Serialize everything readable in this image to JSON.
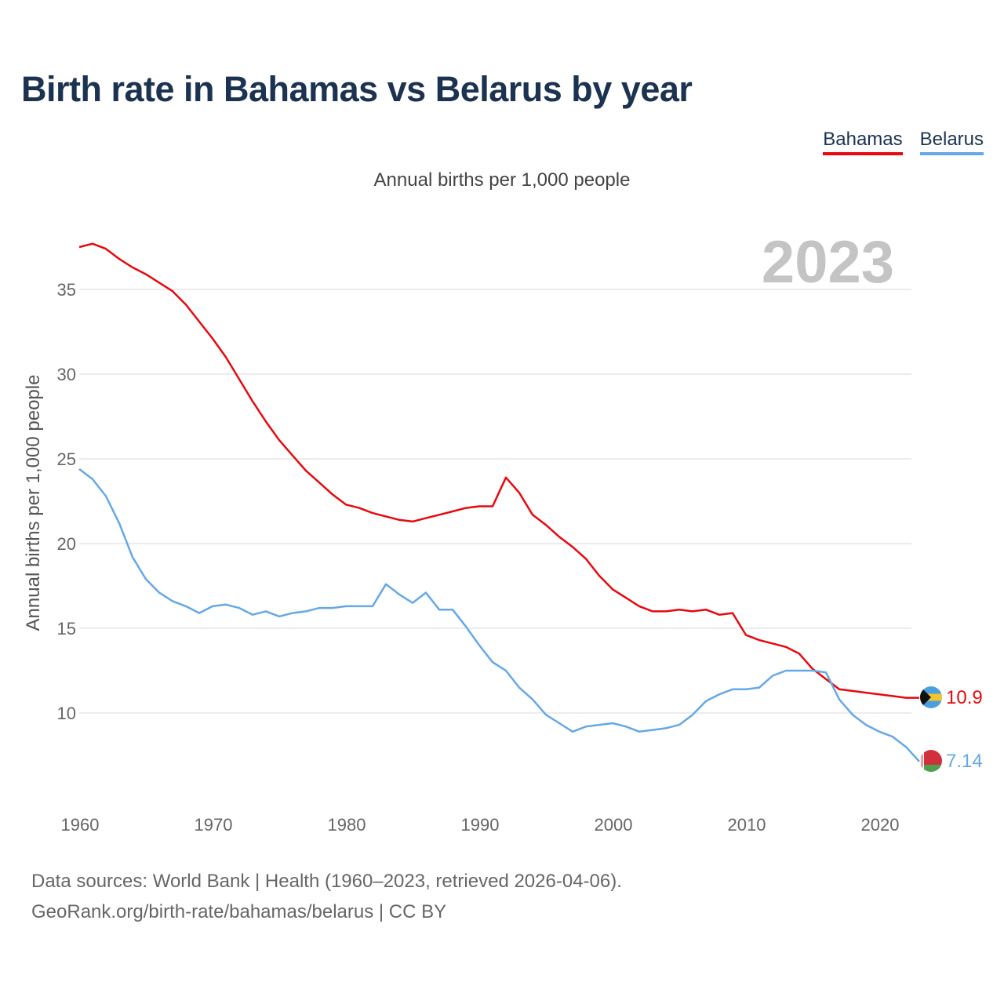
{
  "title": "Birth rate in Bahamas vs Belarus by year",
  "subtitle": "Annual births per 1,000 people",
  "legend": [
    {
      "name": "Bahamas",
      "color": "#e8080d"
    },
    {
      "name": "Belarus",
      "color": "#64a8e6"
    }
  ],
  "year_label": "2023",
  "footer": {
    "line1": "Data sources: World Bank | Health (1960–2023, retrieved 2026-04-06).",
    "line2": "GeoRank.org/birth-rate/bahamas/belarus | CC BY"
  },
  "chart_data": {
    "type": "line",
    "title": "Birth rate in Bahamas vs Belarus by year",
    "ylabel": "Annual births per 1,000 people",
    "xlabel": "",
    "xlim": [
      1960,
      2023
    ],
    "ylim": [
      5,
      38
    ],
    "x_ticks": [
      "1960",
      "1970",
      "1980",
      "1990",
      "2000",
      "2010",
      "2020"
    ],
    "y_ticks": [
      "10",
      "15",
      "20",
      "25",
      "30",
      "35"
    ],
    "grid": true,
    "series": [
      {
        "name": "Bahamas",
        "color": "#e8080d",
        "end_label": "10.9",
        "x": [
          1960,
          1961,
          1962,
          1963,
          1964,
          1965,
          1966,
          1967,
          1968,
          1969,
          1970,
          1971,
          1972,
          1973,
          1974,
          1975,
          1976,
          1977,
          1978,
          1979,
          1980,
          1981,
          1982,
          1983,
          1984,
          1985,
          1986,
          1987,
          1988,
          1989,
          1990,
          1991,
          1992,
          1993,
          1994,
          1995,
          1996,
          1997,
          1998,
          1999,
          2000,
          2001,
          2002,
          2003,
          2004,
          2005,
          2006,
          2007,
          2008,
          2009,
          2010,
          2011,
          2012,
          2013,
          2014,
          2015,
          2016,
          2017,
          2018,
          2019,
          2020,
          2021,
          2022,
          2023
        ],
        "values": [
          37.5,
          37.7,
          37.4,
          36.8,
          36.3,
          35.9,
          35.4,
          34.9,
          34.1,
          33.1,
          32.1,
          31.0,
          29.7,
          28.4,
          27.2,
          26.1,
          25.2,
          24.3,
          23.6,
          22.9,
          22.3,
          22.1,
          21.8,
          21.6,
          21.4,
          21.3,
          21.5,
          21.7,
          21.9,
          22.1,
          22.2,
          22.2,
          23.9,
          23.0,
          21.7,
          21.1,
          20.4,
          19.8,
          19.1,
          18.1,
          17.3,
          16.8,
          16.3,
          16.0,
          16.0,
          16.1,
          16.0,
          16.1,
          15.8,
          15.9,
          14.6,
          14.3,
          14.1,
          13.9,
          13.5,
          12.6,
          12.0,
          11.4,
          11.3,
          11.2,
          11.1,
          11.0,
          10.9,
          10.9
        ]
      },
      {
        "name": "Belarus",
        "color": "#64a8e6",
        "end_label": "7.14",
        "x": [
          1960,
          1961,
          1962,
          1963,
          1964,
          1965,
          1966,
          1967,
          1968,
          1969,
          1970,
          1971,
          1972,
          1973,
          1974,
          1975,
          1976,
          1977,
          1978,
          1979,
          1980,
          1981,
          1982,
          1983,
          1984,
          1985,
          1986,
          1987,
          1988,
          1989,
          1990,
          1991,
          1992,
          1993,
          1994,
          1995,
          1996,
          1997,
          1998,
          1999,
          2000,
          2001,
          2002,
          2003,
          2004,
          2005,
          2006,
          2007,
          2008,
          2009,
          2010,
          2011,
          2012,
          2013,
          2014,
          2015,
          2016,
          2017,
          2018,
          2019,
          2020,
          2021,
          2022,
          2023
        ],
        "values": [
          24.4,
          23.8,
          22.8,
          21.2,
          19.2,
          17.9,
          17.1,
          16.6,
          16.3,
          15.9,
          16.3,
          16.4,
          16.2,
          15.8,
          16.0,
          15.7,
          15.9,
          16.0,
          16.2,
          16.2,
          16.3,
          16.3,
          16.3,
          17.6,
          17.0,
          16.5,
          17.1,
          16.1,
          16.1,
          15.1,
          14.0,
          13.0,
          12.5,
          11.5,
          10.8,
          9.9,
          9.4,
          8.9,
          9.2,
          9.3,
          9.4,
          9.2,
          8.9,
          9.0,
          9.1,
          9.3,
          9.9,
          10.7,
          11.1,
          11.4,
          11.4,
          11.5,
          12.2,
          12.5,
          12.5,
          12.5,
          12.4,
          10.8,
          9.9,
          9.3,
          8.9,
          8.6,
          8.0,
          7.14
        ]
      }
    ]
  }
}
